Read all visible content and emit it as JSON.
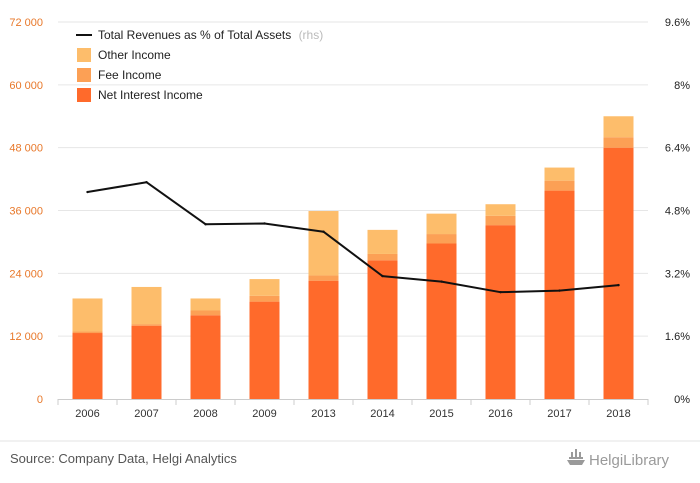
{
  "chart_data": {
    "type": "bar",
    "stacked": true,
    "categories": [
      "2006",
      "2007",
      "2008",
      "2009",
      "2013",
      "2014",
      "2015",
      "2016",
      "2017",
      "2018"
    ],
    "series": [
      {
        "name": "Net Interest Income",
        "color": "#ff6a2b",
        "values": [
          12600,
          14000,
          16000,
          18600,
          22600,
          26500,
          29700,
          33200,
          39800,
          48000
        ]
      },
      {
        "name": "Fee Income",
        "color": "#fca055",
        "values": [
          300,
          300,
          900,
          1100,
          1000,
          1200,
          1800,
          1800,
          1900,
          2000
        ]
      },
      {
        "name": "Other Income",
        "color": "#fdbd6b",
        "values": [
          6300,
          7100,
          2300,
          3200,
          12300,
          4600,
          3900,
          2200,
          2500,
          4000
        ]
      }
    ],
    "line_series": {
      "name": "Total Revenues as % of Total Assets",
      "axis_note": "(rhs)",
      "color": "#111111",
      "values": [
        5.27,
        5.52,
        4.45,
        4.47,
        4.26,
        3.13,
        2.99,
        2.72,
        2.76,
        2.9
      ]
    },
    "left_axis": {
      "ticks": [
        "0",
        "12 000",
        "24 000",
        "36 000",
        "48 000",
        "60 000",
        "72 000"
      ],
      "ylim": [
        0,
        72000
      ],
      "color": "#e8782a"
    },
    "right_axis": {
      "ticks": [
        "0%",
        "1.6%",
        "3.2%",
        "4.8%",
        "6.4%",
        "8%",
        "9.6%"
      ],
      "ylim": [
        0,
        9.6
      ]
    },
    "grid": true,
    "legend_position": "top-left",
    "source": "Source: Company Data, Helgi Analytics",
    "brand": "HelgiLibrary"
  }
}
